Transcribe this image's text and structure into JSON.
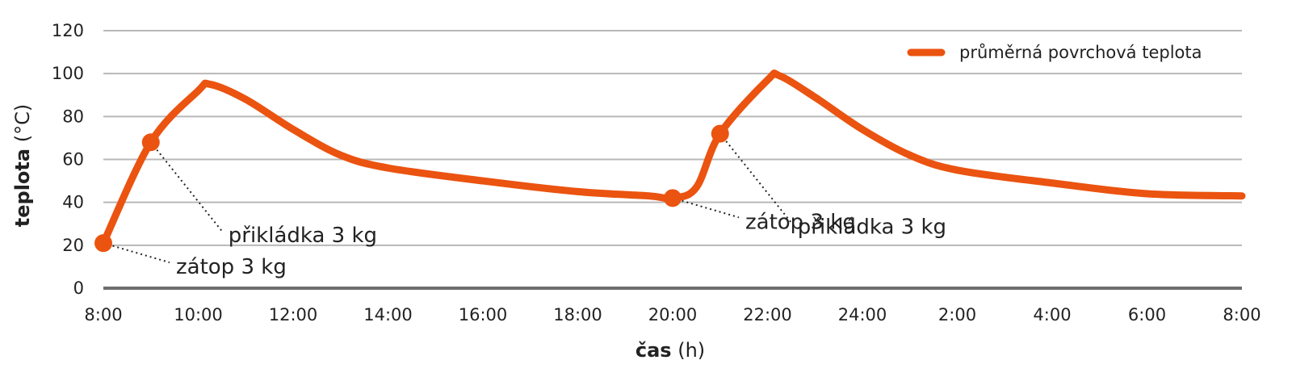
{
  "chart_data": {
    "type": "line",
    "x_ticks": [
      "8:00",
      "10:00",
      "12:00",
      "14:00",
      "16:00",
      "18:00",
      "20:00",
      "22:00",
      "24:00",
      "2:00",
      "4:00",
      "6:00",
      "8:00"
    ],
    "y_ticks": [
      0,
      20,
      40,
      60,
      80,
      100,
      120
    ],
    "ylim": [
      0,
      120
    ],
    "xlim": [
      "8:00",
      "8:00 (next day)"
    ],
    "ylabel_bold": "teplota",
    "ylabel_unit": "(°C)",
    "xlabel_bold": "čas",
    "xlabel_unit": "(h)",
    "grid": true,
    "legend_position": "top-right",
    "series": [
      {
        "name": "průměrná povrchová teplota",
        "color": "#eb5310",
        "x": [
          "8:00",
          "9:00",
          "10:00",
          "10:15",
          "11:00",
          "12:00",
          "13:00",
          "14:00",
          "16:00",
          "18:00",
          "19:30",
          "20:00",
          "20:30",
          "21:00",
          "22:00",
          "22:15",
          "23:00",
          "24:00",
          "1:00",
          "2:00",
          "4:00",
          "6:00",
          "8:00"
        ],
        "y": [
          21,
          68,
          92,
          95,
          88,
          74,
          62,
          56,
          50,
          45,
          43,
          42,
          47,
          72,
          97,
          99,
          89,
          74,
          62,
          55,
          49,
          44,
          43
        ]
      }
    ],
    "markers": [
      {
        "x": "8:00",
        "y": 21,
        "label": "zátop 3 kg"
      },
      {
        "x": "9:00",
        "y": 68,
        "label": "přikládka 3 kg"
      },
      {
        "x": "20:00",
        "y": 42,
        "label": "zátop 3 kg"
      },
      {
        "x": "21:00",
        "y": 72,
        "label": "přikládka 3 kg"
      }
    ]
  }
}
